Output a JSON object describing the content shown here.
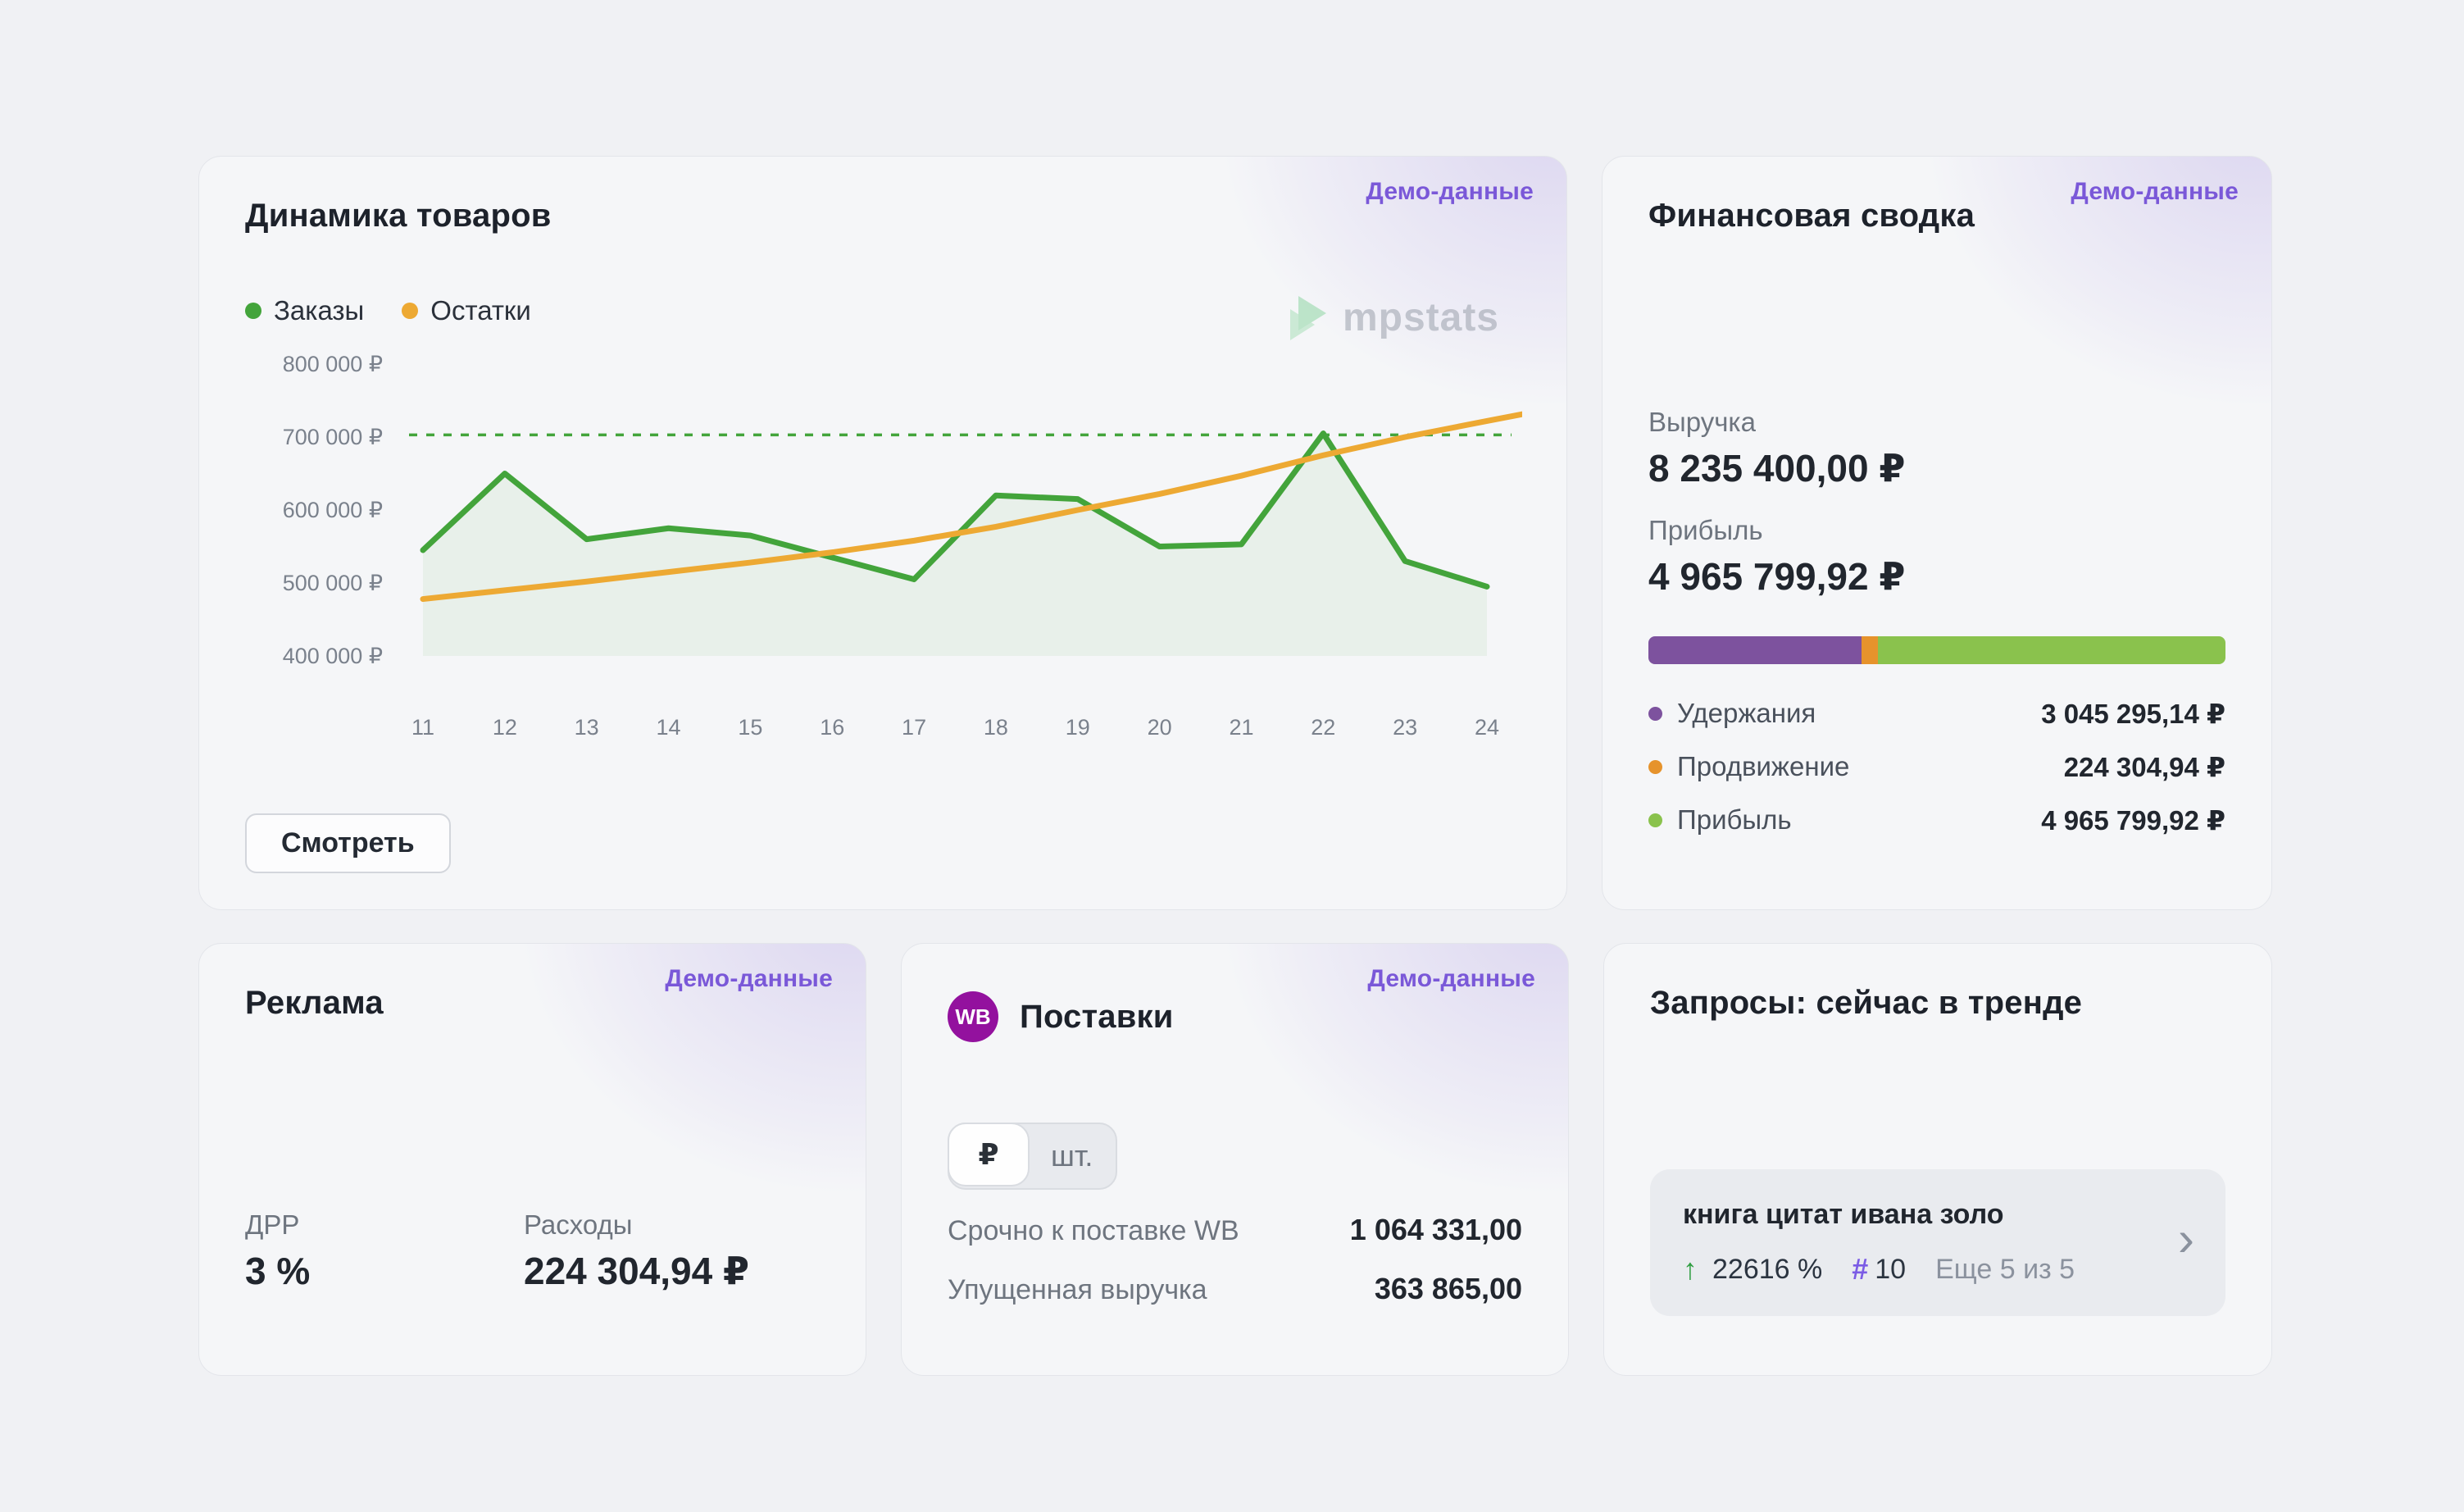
{
  "demo_badge": "Демо-данные",
  "dynamics_card": {
    "title": "Динамика товаров",
    "legend": [
      {
        "label": "Заказы",
        "color": "#43a43b"
      },
      {
        "label": "Остатки",
        "color": "#eda933"
      }
    ],
    "watermark": "mpstats",
    "view_button": "Смотреть"
  },
  "chart_data": {
    "type": "line",
    "title": "Динамика товаров",
    "x": [
      11,
      12,
      13,
      14,
      15,
      16,
      17,
      18,
      19,
      20,
      21,
      22,
      23,
      24
    ],
    "series": [
      {
        "name": "Заказы",
        "color": "#43a43b",
        "area": true,
        "values": [
          545000,
          650000,
          560000,
          575000,
          565000,
          535000,
          505000,
          620000,
          615000,
          550000,
          553000,
          705000,
          530000,
          495000
        ]
      },
      {
        "name": "Остатки",
        "color": "#eda933",
        "area": false,
        "extend_right": true,
        "values": [
          478000,
          490000,
          502000,
          515000,
          528000,
          542000,
          558000,
          577000,
          600000,
          622000,
          647000,
          675000,
          700000,
          722000
        ]
      }
    ],
    "reference_line": {
      "value": 703000,
      "color": "#43a43b",
      "style": "dashed"
    },
    "y_ticks": [
      800000,
      700000,
      600000,
      500000,
      400000
    ],
    "y_tick_labels": [
      "800 000 ₽",
      "700 000 ₽",
      "600 000 ₽",
      "500 000 ₽",
      "400 000 ₽"
    ],
    "ylim": [
      400000,
      800000
    ],
    "grid": false,
    "legend_position": "top-left",
    "area_fill": "rgba(67,164,59,0.07)"
  },
  "finance_card": {
    "title": "Финансовая сводка",
    "revenue": {
      "label": "Выручка",
      "value": "8 235 400,00 ₽"
    },
    "profit": {
      "label": "Прибыль",
      "value": "4 965 799,92 ₽"
    },
    "bar_chart": {
      "type": "bar",
      "segments": [
        {
          "label": "Удержания",
          "value": 3045295.14,
          "display": "3 045 295,14 ₽",
          "color": "#7d529e"
        },
        {
          "label": "Продвижение",
          "value": 224304.94,
          "display": "224 304,94 ₽",
          "color": "#e6932c"
        },
        {
          "label": "Прибыль",
          "value": 4965799.92,
          "display": "4 965 799,92 ₽",
          "color": "#8ac24d"
        }
      ]
    }
  },
  "ads_card": {
    "title": "Реклама",
    "metrics": [
      {
        "label": "ДРР",
        "value": "3 %"
      },
      {
        "label": "Расходы",
        "value": "224 304,94 ₽"
      }
    ]
  },
  "supply_card": {
    "title": "Поставки",
    "wb_badge": "WB",
    "unit_toggle": [
      {
        "label": "₽",
        "selected": true
      },
      {
        "label": "шт.",
        "selected": false
      }
    ],
    "rows": [
      {
        "label": "Срочно к поставке WB",
        "value": "1 064 331,00"
      },
      {
        "label": "Упущенная выручка",
        "value": "363 865,00"
      }
    ]
  },
  "queries_card": {
    "title": "Запросы: сейчас в тренде",
    "item": {
      "query": "книга цитат ивана золо",
      "trend_arrow": "↑",
      "growth": "22616 %",
      "rank_symbol": "#",
      "rank": "10",
      "more": "Еще 5 из 5"
    }
  }
}
